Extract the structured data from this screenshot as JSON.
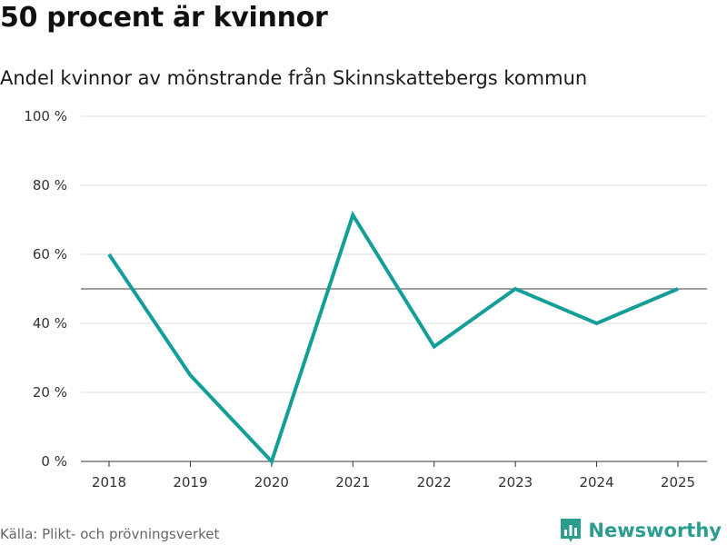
{
  "header": {
    "title": "50 procent är kvinnor",
    "subtitle": "Andel kvinnor av mönstrande från Skinnskattebergs kommun"
  },
  "footer": {
    "source": "Källa: Plikt- och prövningsverket",
    "brand": "Newsworthy",
    "brand_icon": "bar-chart-logo-icon"
  },
  "colors": {
    "line": "#139e98",
    "reference": "#666666",
    "grid": "#dddddd",
    "brand": "#2a9d8f"
  },
  "chart_data": {
    "type": "line",
    "title": "50 procent är kvinnor",
    "subtitle": "Andel kvinnor av mönstrande från Skinnskattebergs kommun",
    "xlabel": "",
    "ylabel": "",
    "x": [
      "2018",
      "2019",
      "2020",
      "2021",
      "2022",
      "2023",
      "2024",
      "2025"
    ],
    "series": [
      {
        "name": "Andel kvinnor",
        "values": [
          60,
          25,
          0,
          71.4,
          33.3,
          50,
          40,
          50
        ]
      }
    ],
    "reference_line": 50,
    "ylim": [
      0,
      100
    ],
    "yticks": [
      0,
      20,
      40,
      60,
      80,
      100
    ],
    "ytick_labels": [
      "0 %",
      "20 %",
      "40 %",
      "60 %",
      "80 %",
      "100 %"
    ],
    "grid": true,
    "legend": "none"
  }
}
